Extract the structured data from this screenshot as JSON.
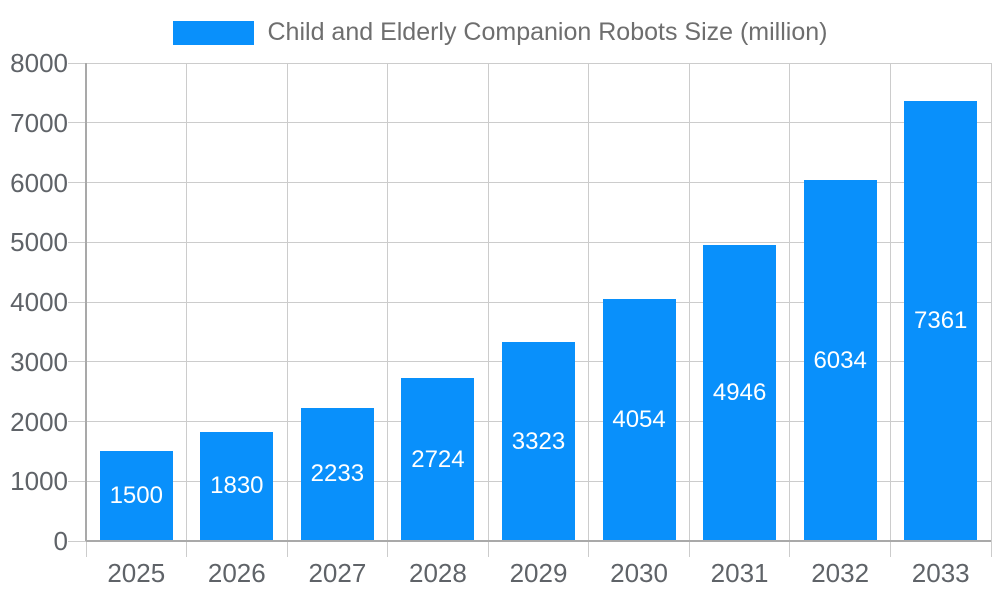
{
  "chart_data": {
    "type": "bar",
    "title": "Child and Elderly Companion Robots Size (million)",
    "categories": [
      "2025",
      "2026",
      "2027",
      "2028",
      "2029",
      "2030",
      "2031",
      "2032",
      "2033"
    ],
    "values": [
      1500,
      1830,
      2233,
      2724,
      3323,
      4054,
      4946,
      6034,
      7361
    ],
    "series": [
      {
        "name": "Child and Elderly Companion Robots Size (million)",
        "values": [
          1500,
          1830,
          2233,
          2724,
          3323,
          4054,
          4946,
          6034,
          7361
        ]
      }
    ],
    "xlabel": "",
    "ylabel": "",
    "ylim": [
      0,
      8000
    ],
    "ytick_step": 1000,
    "yticks": [
      0,
      1000,
      2000,
      3000,
      4000,
      5000,
      6000,
      7000,
      8000
    ],
    "grid": true,
    "legend_position": "top",
    "value_label_position": "inside-center"
  },
  "colors": {
    "bar": "#0990fb",
    "grid": "#cccccc",
    "axis": "#a9a9a9",
    "axis_text": "#5f6368",
    "title_text": "#6e6e6e",
    "value_text": "#ffffff",
    "background": "#ffffff"
  }
}
